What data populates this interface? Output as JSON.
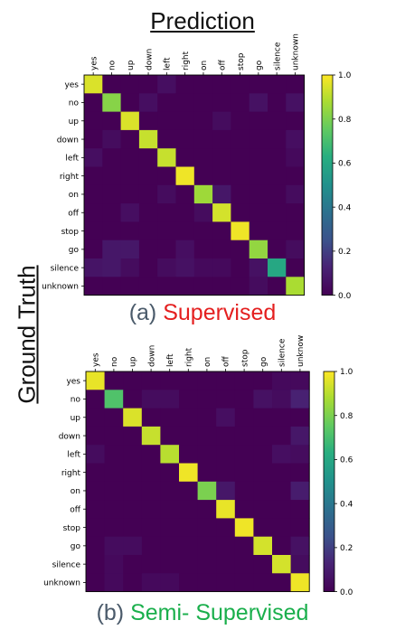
{
  "figure": {
    "top_title": "Prediction",
    "side_label": "Ground Truth"
  },
  "colors": {
    "caption_letter": "#4a5a6a",
    "supervised": "#e41f1f",
    "semi_supervised": "#1aaf4c"
  },
  "chart_data": [
    {
      "type": "heatmap",
      "caption_letter": "(a)",
      "caption_text": "Supervised",
      "x_label": "Prediction",
      "y_label": "Ground Truth",
      "colormap": "viridis",
      "colorbar_ticks": [
        "0.0",
        "0.2",
        "0.4",
        "0.6",
        "0.8",
        "1.0"
      ],
      "zlim": [
        0,
        1
      ],
      "categories": [
        "yes",
        "no",
        "up",
        "down",
        "left",
        "right",
        "on",
        "off",
        "stop",
        "go",
        "silence",
        "unknown"
      ],
      "values": [
        [
          0.95,
          0.0,
          0.0,
          0.0,
          0.05,
          0.0,
          0.0,
          0.0,
          0.0,
          0.0,
          0.0,
          0.0
        ],
        [
          0.0,
          0.82,
          0.0,
          0.05,
          0.0,
          0.0,
          0.0,
          0.0,
          0.0,
          0.06,
          0.0,
          0.06
        ],
        [
          0.0,
          0.0,
          0.95,
          0.0,
          0.0,
          0.0,
          0.0,
          0.04,
          0.0,
          0.0,
          0.0,
          0.0
        ],
        [
          0.0,
          0.04,
          0.0,
          0.92,
          0.0,
          0.0,
          0.0,
          0.0,
          0.0,
          0.0,
          0.0,
          0.05
        ],
        [
          0.05,
          0.0,
          0.0,
          0.0,
          0.92,
          0.0,
          0.0,
          0.0,
          0.0,
          0.0,
          0.0,
          0.03
        ],
        [
          0.0,
          0.0,
          0.0,
          0.0,
          0.0,
          0.98,
          0.0,
          0.0,
          0.0,
          0.0,
          0.0,
          0.0
        ],
        [
          0.0,
          0.0,
          0.0,
          0.0,
          0.04,
          0.0,
          0.86,
          0.08,
          0.0,
          0.0,
          0.0,
          0.04
        ],
        [
          0.0,
          0.0,
          0.05,
          0.0,
          0.0,
          0.0,
          0.04,
          0.94,
          0.0,
          0.0,
          0.0,
          0.0
        ],
        [
          0.0,
          0.0,
          0.0,
          0.0,
          0.0,
          0.0,
          0.0,
          0.0,
          0.98,
          0.0,
          0.0,
          0.0
        ],
        [
          0.0,
          0.08,
          0.08,
          0.0,
          0.0,
          0.05,
          0.0,
          0.0,
          0.0,
          0.84,
          0.0,
          0.04
        ],
        [
          0.07,
          0.08,
          0.04,
          0.0,
          0.04,
          0.06,
          0.03,
          0.03,
          0.0,
          0.06,
          0.6,
          0.0
        ],
        [
          0.0,
          0.0,
          0.0,
          0.0,
          0.0,
          0.0,
          0.0,
          0.0,
          0.0,
          0.04,
          0.0,
          0.88
        ]
      ]
    },
    {
      "type": "heatmap",
      "caption_letter": "(b)",
      "caption_text": "Semi- Supervised",
      "x_label": "Prediction",
      "y_label": "Ground Truth",
      "colormap": "viridis",
      "colorbar_ticks": [
        "0.0",
        "0.2",
        "0.4",
        "0.6",
        "0.8",
        "1.0"
      ],
      "zlim": [
        0,
        1
      ],
      "categories": [
        "yes",
        "no",
        "up",
        "down",
        "left",
        "right",
        "on",
        "off",
        "stop",
        "go",
        "silence",
        "unknow"
      ],
      "y_categories": [
        "yes",
        "no",
        "up",
        "down",
        "left",
        "right",
        "on",
        "off",
        "stop",
        "go",
        "silence",
        "unknown"
      ],
      "values": [
        [
          0.97,
          0.0,
          0.0,
          0.0,
          0.0,
          0.0,
          0.0,
          0.0,
          0.0,
          0.0,
          0.03,
          0.03
        ],
        [
          0.0,
          0.72,
          0.0,
          0.04,
          0.04,
          0.0,
          0.0,
          0.0,
          0.0,
          0.06,
          0.04,
          0.12
        ],
        [
          0.0,
          0.0,
          0.95,
          0.0,
          0.0,
          0.0,
          0.0,
          0.05,
          0.0,
          0.0,
          0.0,
          0.0
        ],
        [
          0.0,
          0.0,
          0.0,
          0.92,
          0.0,
          0.0,
          0.0,
          0.0,
          0.0,
          0.0,
          0.0,
          0.08
        ],
        [
          0.04,
          0.0,
          0.0,
          0.0,
          0.9,
          0.0,
          0.0,
          0.0,
          0.0,
          0.0,
          0.05,
          0.04
        ],
        [
          0.0,
          0.0,
          0.0,
          0.0,
          0.0,
          0.98,
          0.0,
          0.0,
          0.0,
          0.0,
          0.0,
          0.0
        ],
        [
          0.0,
          0.0,
          0.0,
          0.0,
          0.0,
          0.0,
          0.8,
          0.08,
          0.0,
          0.0,
          0.0,
          0.1
        ],
        [
          0.0,
          0.0,
          0.0,
          0.0,
          0.0,
          0.0,
          0.0,
          0.97,
          0.0,
          0.0,
          0.0,
          0.0
        ],
        [
          0.0,
          0.0,
          0.0,
          0.0,
          0.0,
          0.0,
          0.0,
          0.0,
          0.98,
          0.0,
          0.0,
          0.0
        ],
        [
          0.0,
          0.04,
          0.04,
          0.0,
          0.0,
          0.0,
          0.0,
          0.0,
          0.0,
          0.94,
          0.0,
          0.06
        ],
        [
          0.0,
          0.03,
          0.0,
          0.0,
          0.0,
          0.0,
          0.0,
          0.0,
          0.0,
          0.0,
          0.94,
          0.04
        ],
        [
          0.0,
          0.03,
          0.0,
          0.03,
          0.03,
          0.0,
          0.0,
          0.0,
          0.0,
          0.0,
          0.0,
          0.98
        ]
      ]
    }
  ]
}
